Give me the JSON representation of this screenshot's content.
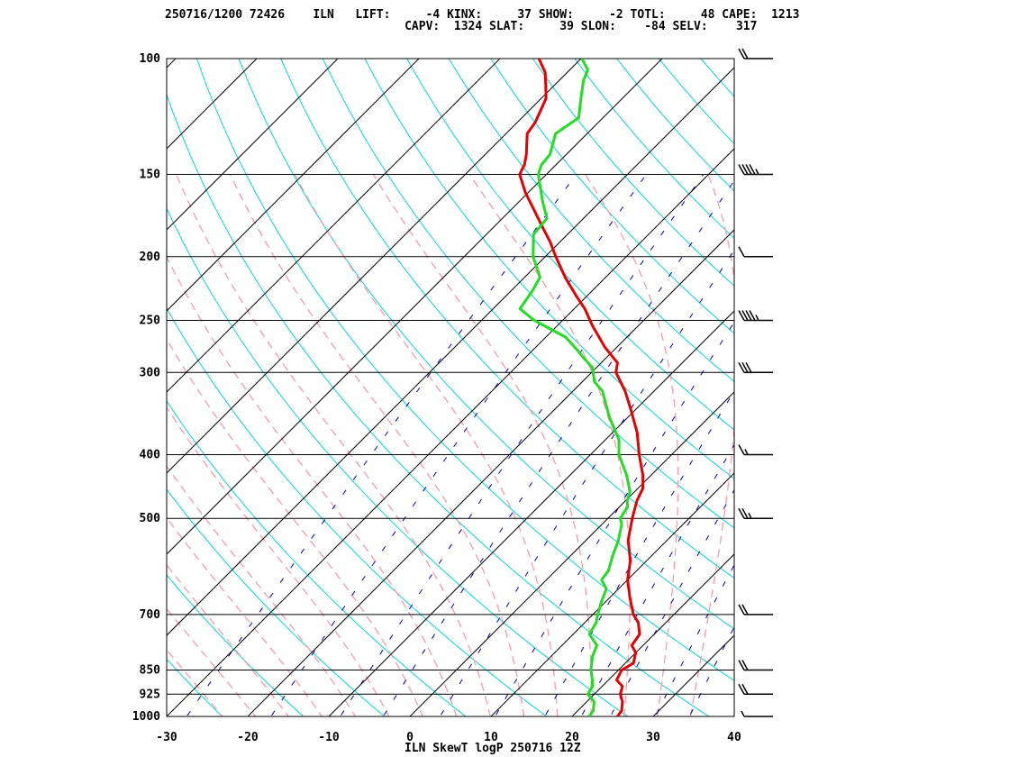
{
  "header": {
    "line1": "250716/1200 72426    ILN   LIFT:     -4 KINX:     37 SHOW:     -2 TOTL:     48 CAPE:  1213",
    "line2": "                                  CAPV:  1324 SLAT:     39 SLON:    -84 SELV:    317"
  },
  "chart_data": {
    "type": "skewt-logp",
    "title": "ILN SkewT logP 250716 12Z",
    "xlabel": "",
    "ylabel": "",
    "xlim": [
      -30,
      40
    ],
    "ylim": [
      1000,
      100
    ],
    "y_scale": "log (inverted)",
    "x_ticks": [
      "-30",
      "-20",
      "-10",
      "0",
      "10",
      "20",
      "30",
      "40"
    ],
    "x_tick_values": [
      -30,
      -20,
      -10,
      0,
      10,
      20,
      30,
      40
    ],
    "pressure_levels": [
      "100",
      "150",
      "200",
      "250",
      "300",
      "400",
      "500",
      "700",
      "850",
      "925",
      "1000"
    ],
    "pressure_values": [
      100,
      150,
      200,
      250,
      300,
      400,
      500,
      700,
      850,
      925,
      1000
    ],
    "colors": {
      "temperature": "#e80000",
      "dewpoint": "#22dd22",
      "isotherm": "#000000",
      "dry_adiabat": "#00dddd",
      "moist_adiabat": "#ff9aaa",
      "mixing_ratio": "#0000cc"
    },
    "series": [
      {
        "name": "",
        "role": "temperature",
        "points": [
          [
            1000,
            25.6
          ],
          [
            980,
            25.4
          ],
          [
            950,
            24.4
          ],
          [
            925,
            23.2
          ],
          [
            900,
            22.5
          ],
          [
            880,
            21.0
          ],
          [
            850,
            20.4
          ],
          [
            830,
            21.0
          ],
          [
            800,
            20.0
          ],
          [
            780,
            18.6
          ],
          [
            750,
            18.2
          ],
          [
            720,
            16.6
          ],
          [
            700,
            15.0
          ],
          [
            660,
            12.5
          ],
          [
            620,
            10.0
          ],
          [
            580,
            8.0
          ],
          [
            540,
            5.2
          ],
          [
            500,
            3.0
          ],
          [
            470,
            1.4
          ],
          [
            450,
            0.6
          ],
          [
            430,
            -1.0
          ],
          [
            400,
            -4.0
          ],
          [
            370,
            -7.0
          ],
          [
            340,
            -10.8
          ],
          [
            320,
            -13.6
          ],
          [
            300,
            -17.0
          ],
          [
            290,
            -18.0
          ],
          [
            275,
            -21.4
          ],
          [
            255,
            -25.6
          ],
          [
            240,
            -28.7
          ],
          [
            230,
            -31.2
          ],
          [
            215,
            -35.0
          ],
          [
            200,
            -38.7
          ],
          [
            190,
            -41.2
          ],
          [
            180,
            -44.1
          ],
          [
            170,
            -47.1
          ],
          [
            160,
            -50.3
          ],
          [
            150,
            -53.3
          ],
          [
            145,
            -53.9
          ],
          [
            140,
            -54.9
          ],
          [
            130,
            -57.4
          ],
          [
            125,
            -57.8
          ],
          [
            115,
            -59.4
          ],
          [
            110,
            -61.0
          ],
          [
            105,
            -62.7
          ],
          [
            100,
            -65.2
          ]
        ]
      },
      {
        "name": "",
        "role": "dewpoint",
        "points": [
          [
            1000,
            22.1
          ],
          [
            980,
            21.9
          ],
          [
            950,
            20.9
          ],
          [
            925,
            19.2
          ],
          [
            900,
            18.8
          ],
          [
            880,
            18.0
          ],
          [
            850,
            16.6
          ],
          [
            810,
            15.1
          ],
          [
            780,
            14.3
          ],
          [
            750,
            12.0
          ],
          [
            720,
            11.4
          ],
          [
            700,
            10.6
          ],
          [
            670,
            9.5
          ],
          [
            640,
            8.5
          ],
          [
            620,
            6.8
          ],
          [
            600,
            6.5
          ],
          [
            570,
            5.2
          ],
          [
            540,
            4.0
          ],
          [
            510,
            2.4
          ],
          [
            500,
            1.5
          ],
          [
            480,
            1.0
          ],
          [
            470,
            0.2
          ],
          [
            455,
            -0.6
          ],
          [
            430,
            -3.0
          ],
          [
            400,
            -6.5
          ],
          [
            380,
            -8.3
          ],
          [
            350,
            -12.4
          ],
          [
            320,
            -16.4
          ],
          [
            310,
            -18.5
          ],
          [
            295,
            -20.5
          ],
          [
            285,
            -22.8
          ],
          [
            275,
            -25.1
          ],
          [
            265,
            -27.6
          ],
          [
            250,
            -33.5
          ],
          [
            240,
            -36.7
          ],
          [
            225,
            -37.4
          ],
          [
            215,
            -38.1
          ],
          [
            200,
            -41.5
          ],
          [
            185,
            -44.2
          ],
          [
            175,
            -44.5
          ],
          [
            165,
            -47.1
          ],
          [
            150,
            -51.0
          ],
          [
            145,
            -51.8
          ],
          [
            140,
            -52.0
          ],
          [
            130,
            -53.9
          ],
          [
            123,
            -53.0
          ],
          [
            115,
            -55.1
          ],
          [
            108,
            -57.0
          ],
          [
            104,
            -57.8
          ],
          [
            100,
            -59.9
          ]
        ]
      }
    ],
    "wind_barbs": [
      {
        "p": 100,
        "speed_kt": 20
      },
      {
        "p": 150,
        "speed_kt": 45
      },
      {
        "p": 200,
        "speed_kt": 10
      },
      {
        "p": 250,
        "speed_kt": 45
      },
      {
        "p": 300,
        "speed_kt": 30
      },
      {
        "p": 400,
        "speed_kt": 15
      },
      {
        "p": 500,
        "speed_kt": 25
      },
      {
        "p": 700,
        "speed_kt": 20
      },
      {
        "p": 850,
        "speed_kt": 20
      },
      {
        "p": 925,
        "speed_kt": 20
      },
      {
        "p": 1000,
        "speed_kt": 5
      }
    ],
    "grid": true,
    "legend": "none"
  }
}
